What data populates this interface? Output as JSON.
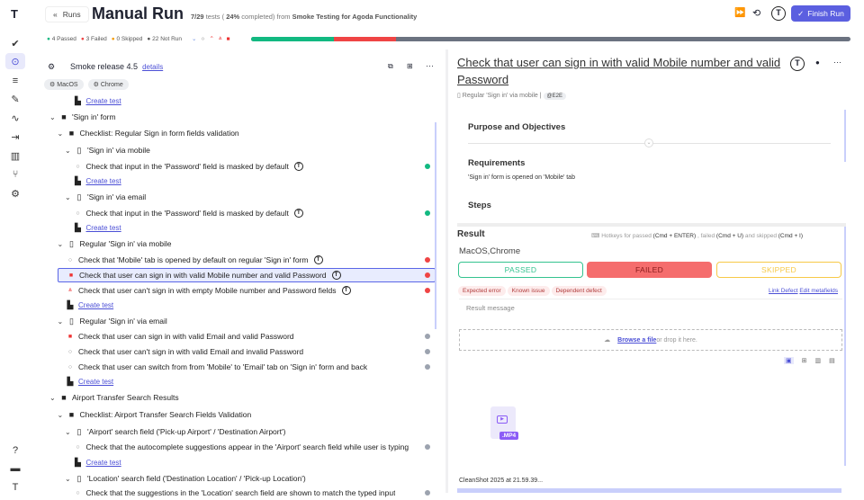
{
  "sidebar": {
    "logo": "T",
    "items": [
      {
        "name": "checkmark-icon",
        "glyph": "✔"
      },
      {
        "name": "play-circle-icon",
        "glyph": "⊙",
        "active": true
      },
      {
        "name": "checklist-icon",
        "glyph": "≡"
      },
      {
        "name": "pen-icon",
        "glyph": "✎"
      },
      {
        "name": "activity-icon",
        "glyph": "∿"
      },
      {
        "name": "import-icon",
        "glyph": "⇥"
      },
      {
        "name": "chart-icon",
        "glyph": "▥"
      },
      {
        "name": "branch-icon",
        "glyph": "⑂"
      },
      {
        "name": "gear-icon",
        "glyph": "⚙"
      }
    ],
    "bottom": [
      {
        "name": "help-icon",
        "glyph": "?"
      },
      {
        "name": "folder-icon",
        "glyph": "▬"
      },
      {
        "name": "avatar-icon",
        "glyph": "T"
      }
    ]
  },
  "header": {
    "back_label": "Runs",
    "title": "Manual Run",
    "progress_text_1": "7/29",
    "progress_text_2": " tests ( ",
    "progress_pct": "24%",
    "progress_text_3": " completed) from ",
    "plan": "Smoke Testing for Agoda Functionality",
    "finish_label": "Finish Run"
  },
  "stats": {
    "passed": "4 Passed",
    "failed": "3 Failed",
    "skipped": "0 Skipped",
    "notrun": "22 Not Run",
    "counts": {
      "passed": 4,
      "failed": 3,
      "skipped": 0,
      "not_run": 22,
      "total": 29
    },
    "colors": {
      "passed": "#12b981",
      "failed": "#ef4444",
      "skipped": "#f59e0b",
      "not_run": "#6b7280"
    }
  },
  "tree": {
    "release": "Smoke release 4.5",
    "details": "details",
    "tags": [
      "MacOS",
      "Chrome"
    ],
    "rows": [
      {
        "t": "link",
        "d": 3,
        "label": "Create test"
      },
      {
        "t": "folder",
        "d": 0,
        "label": "'Sign in' form"
      },
      {
        "t": "folder",
        "d": 1,
        "label": "Checklist: Regular Sign in form fields validation"
      },
      {
        "t": "suite",
        "d": 2,
        "label": "'Sign in' via mobile"
      },
      {
        "t": "test",
        "d": 3,
        "label": "Check that input in the 'Password' field is masked by default",
        "s": "passed",
        "auto": true
      },
      {
        "t": "link",
        "d": 3,
        "label": "Create test"
      },
      {
        "t": "suite",
        "d": 2,
        "label": "'Sign in' via email"
      },
      {
        "t": "test",
        "d": 3,
        "label": "Check that input in the 'Password' field is masked by default",
        "s": "passed",
        "auto": true
      },
      {
        "t": "link",
        "d": 3,
        "label": "Create test"
      },
      {
        "t": "suite",
        "d": 1,
        "label": "Regular 'Sign in' via mobile"
      },
      {
        "t": "test",
        "d": 2,
        "label": "Check that 'Mobile' tab is opened by default on regular 'Sign in' form",
        "s": "failed",
        "auto": true
      },
      {
        "t": "test",
        "d": 2,
        "label": "Check that user can sign in with valid Mobile number and valid Password",
        "s": "failed",
        "auto": true,
        "sel": true,
        "pri": "critical"
      },
      {
        "t": "test",
        "d": 2,
        "label": "Check that user can't sign in with empty Mobile number and Password fields",
        "s": "failed",
        "auto": true,
        "pri": "high"
      },
      {
        "t": "link",
        "d": 2,
        "label": "Create test"
      },
      {
        "t": "suite",
        "d": 1,
        "label": "Regular 'Sign in' via email"
      },
      {
        "t": "test",
        "d": 2,
        "label": "Check that user can sign in with valid Email and valid Password",
        "s": "none",
        "pri": "critical"
      },
      {
        "t": "test",
        "d": 2,
        "label": "Check that user can't sign in with valid Email and invalid Password",
        "s": "none"
      },
      {
        "t": "test",
        "d": 2,
        "label": "Check that user can switch from from 'Mobile' to 'Email' tab on 'Sign in' form and back",
        "s": "none"
      },
      {
        "t": "link",
        "d": 2,
        "label": "Create test"
      },
      {
        "t": "folder",
        "d": 0,
        "label": "Airport Transfer Search Results"
      },
      {
        "t": "folder",
        "d": 1,
        "label": "Checklist: Airport Transfer Search Fields Validation"
      },
      {
        "t": "suite",
        "d": 2,
        "label": "'Airport' search field ('Pick-up Airport' / 'Destination Airport')"
      },
      {
        "t": "test",
        "d": 3,
        "label": "Check that the autocomplete suggestions appear in the 'Airport' search field while user is typing",
        "s": "none"
      },
      {
        "t": "link",
        "d": 3,
        "label": "Create test"
      },
      {
        "t": "suite",
        "d": 2,
        "label": "'Location' search field ('Destination Location' / 'Pick-up Location')"
      },
      {
        "t": "test",
        "d": 3,
        "label": "Check that the suggestions in the 'Location' search field are shown to match the typed input",
        "s": "none"
      }
    ]
  },
  "detail": {
    "title": "Check that user can sign in with valid Mobile number and valid Password",
    "suite": "Regular 'Sign in' via mobile",
    "tag": "@E2E",
    "sections": {
      "purpose": "Purpose and Objectives",
      "requirements": "Requirements",
      "req_text": "'Sign in' form is opened on 'Mobile' tab",
      "steps": "Steps"
    },
    "result": {
      "title": "Result",
      "hk1": "Hotkeys for passed ",
      "hk2": "(Cmd + ENTER)",
      "hk3": " , failed ",
      "hk4": "(Cmd + U)",
      "hk5": " and skipped ",
      "hk6": "(Cmd + I)",
      "env": "MacOS,Chrome",
      "passed": "PASSED",
      "failed": "FAILED",
      "skipped": "SKIPPED",
      "selected": "failed",
      "chips": [
        "Expected error",
        "Known issue",
        "Dependent defect"
      ],
      "link_defect": "Link Defect",
      "edit_meta": "Edit metafields",
      "message_placeholder": "Result message",
      "browse": "Browse a file",
      "drop": " or drop it here.",
      "file_ext": ".MP4",
      "file_name": "CleanShot 2025 at 21.59.39..."
    }
  }
}
